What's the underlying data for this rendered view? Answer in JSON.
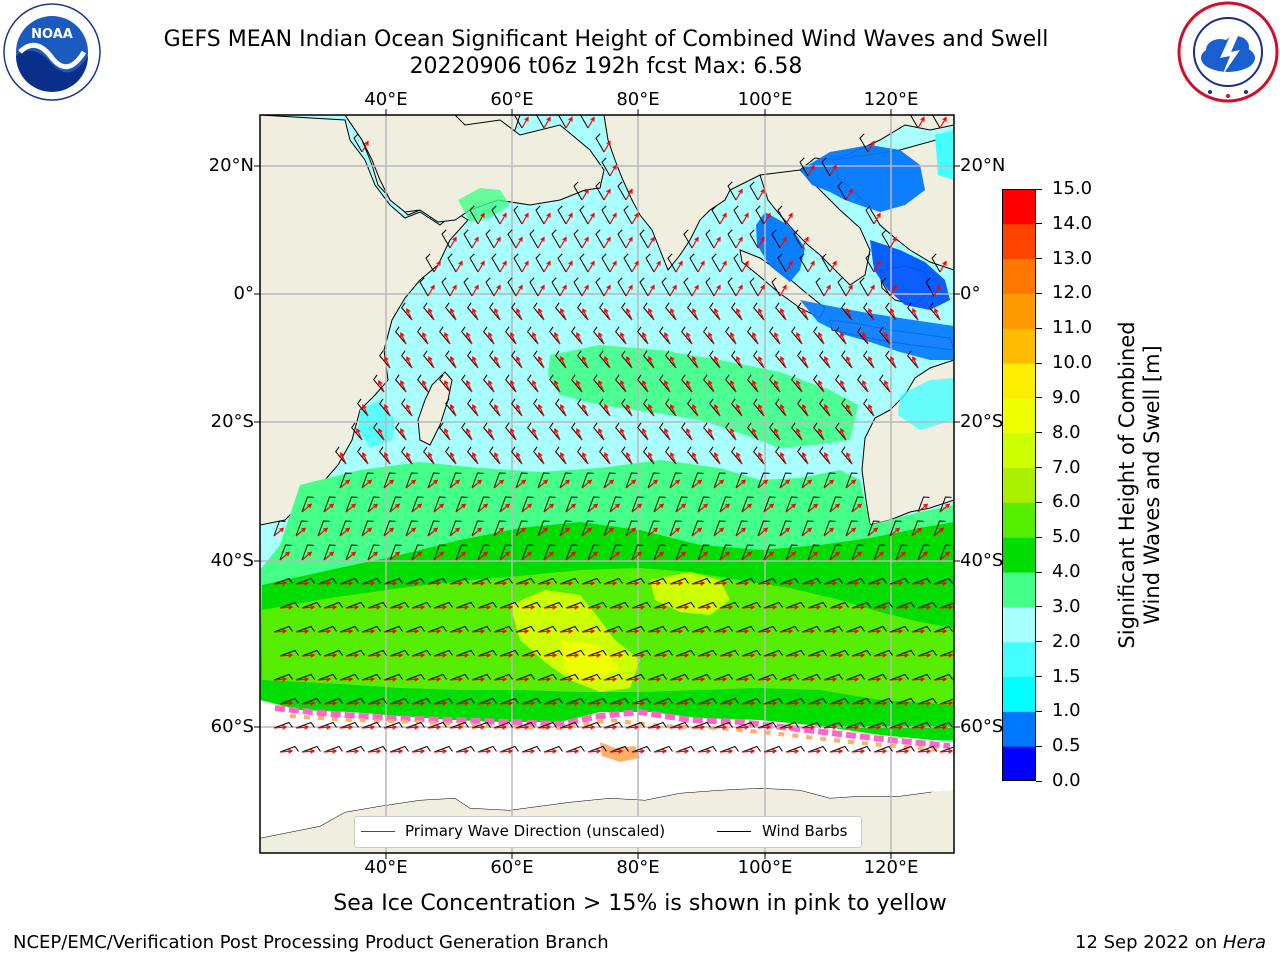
{
  "title": {
    "line1": "GEFS MEAN Indian Ocean Significant Height of Combined Wind Waves and Swell",
    "line2": "20220906 t06z 192h fcst   Max: 6.58"
  },
  "logos": {
    "noaa": {
      "text": "NOAA",
      "ring": "NATIONAL OCEANIC AND ATMOSPHERIC ADMINISTRATION · U.S. DEPARTMENT OF COMMERCE"
    },
    "nws": {
      "ring": "NATIONAL WEATHER SERVICE"
    }
  },
  "map": {
    "lon_labels": [
      "40°E",
      "60°E",
      "80°E",
      "100°E",
      "120°E"
    ],
    "lat_labels": [
      "20°N",
      "0°",
      "20°S",
      "40°S",
      "60°S"
    ],
    "land_color": "#efeedf",
    "ice_note_color": "#ff66cc"
  },
  "colorbar": {
    "ticks": [
      "0.0",
      "0.5",
      "1.0",
      "1.5",
      "2.0",
      "3.0",
      "4.0",
      "5.0",
      "6.0",
      "7.0",
      "8.0",
      "9.0",
      "10.0",
      "11.0",
      "12.0",
      "13.0",
      "14.0",
      "15.0"
    ],
    "colors": [
      "#0000ff",
      "#0077ff",
      "#00ffff",
      "#44ffff",
      "#aaffff",
      "#44ff88",
      "#00dd00",
      "#55ee00",
      "#aaee00",
      "#ccff00",
      "#eeff00",
      "#ffee00",
      "#ffbb00",
      "#ff9900",
      "#ff7700",
      "#ff4400",
      "#ff0000"
    ],
    "label_line1": "Significant Height of Combined",
    "label_line2": "Wind Waves and Swell [m]"
  },
  "legend": {
    "wave_label": "Primary Wave Direction (unscaled)",
    "wave_color": "#ff0000",
    "wind_label": "Wind Barbs",
    "wind_color": "#000000"
  },
  "caption": "Sea Ice Concentration > 15% is shown in pink to yellow",
  "footer": {
    "left": "NCEP/EMC/Verification Post Processing Product Generation Branch",
    "right_prefix": "12 Sep 2022 on ",
    "right_host": "Hera"
  }
}
